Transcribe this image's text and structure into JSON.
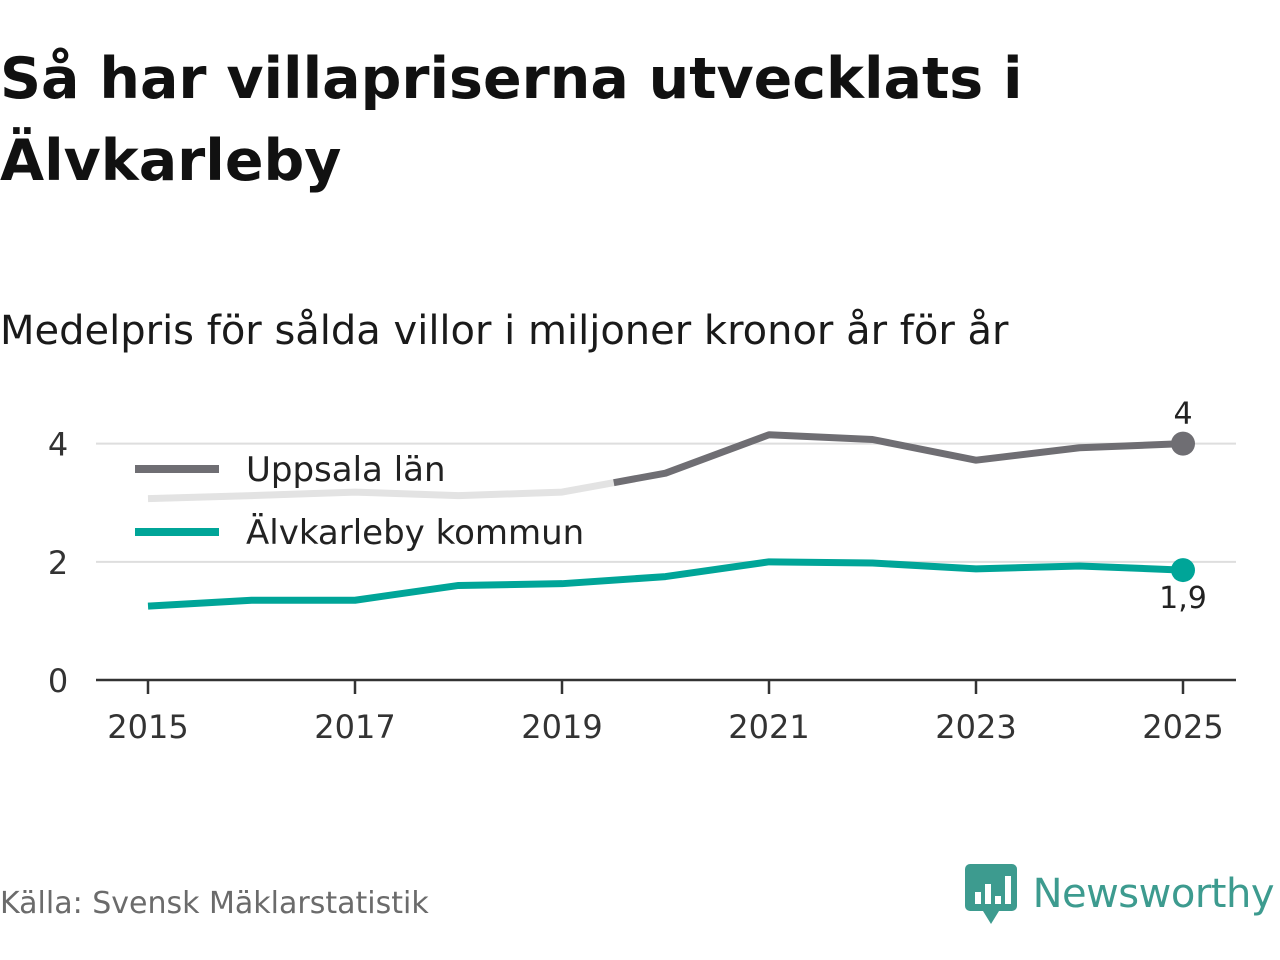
{
  "header": {
    "title": "Så har villapriserna utvecklats i Älvkarleby",
    "subtitle": "Medelpris för sålda villor i miljoner kronor år för år"
  },
  "footer": {
    "source": "Källa: Svensk Mäklarstatistik",
    "brand": "Newsworthy"
  },
  "colors": {
    "uppsala": "#6f6e73",
    "uppsala_faded": "#e3e3e3",
    "alvkarleby": "#00a598",
    "grid": "#dedede",
    "axis": "#333333",
    "brand": "#3d9b8f"
  },
  "chart_data": {
    "type": "line",
    "title": "Medelpris för sålda villor i miljoner kronor år för år",
    "xlabel": "",
    "ylabel": "",
    "x": [
      2015,
      2016,
      2017,
      2018,
      2019,
      2020,
      2021,
      2022,
      2023,
      2024,
      2025
    ],
    "x_ticks": [
      "2015",
      "2017",
      "2019",
      "2021",
      "2023",
      "2025"
    ],
    "y_ticks": [
      "0",
      "2",
      "4"
    ],
    "ylim": [
      0,
      4.4
    ],
    "xlim": [
      2014.5,
      2025.5
    ],
    "grid": true,
    "legend_position": "top-left",
    "series": [
      {
        "name": "Uppsala län",
        "color_key": "uppsala",
        "faded_until": 2019.5,
        "values": [
          3.07,
          3.12,
          3.18,
          3.12,
          3.18,
          3.5,
          4.15,
          4.07,
          3.72,
          3.93,
          4.0
        ],
        "end_label": "4"
      },
      {
        "name": "Älvkarleby kommun",
        "color_key": "alvkarleby",
        "values": [
          1.25,
          1.35,
          1.35,
          1.6,
          1.63,
          1.75,
          2.0,
          1.98,
          1.88,
          1.93,
          1.86
        ],
        "end_label": "1,9"
      }
    ]
  }
}
